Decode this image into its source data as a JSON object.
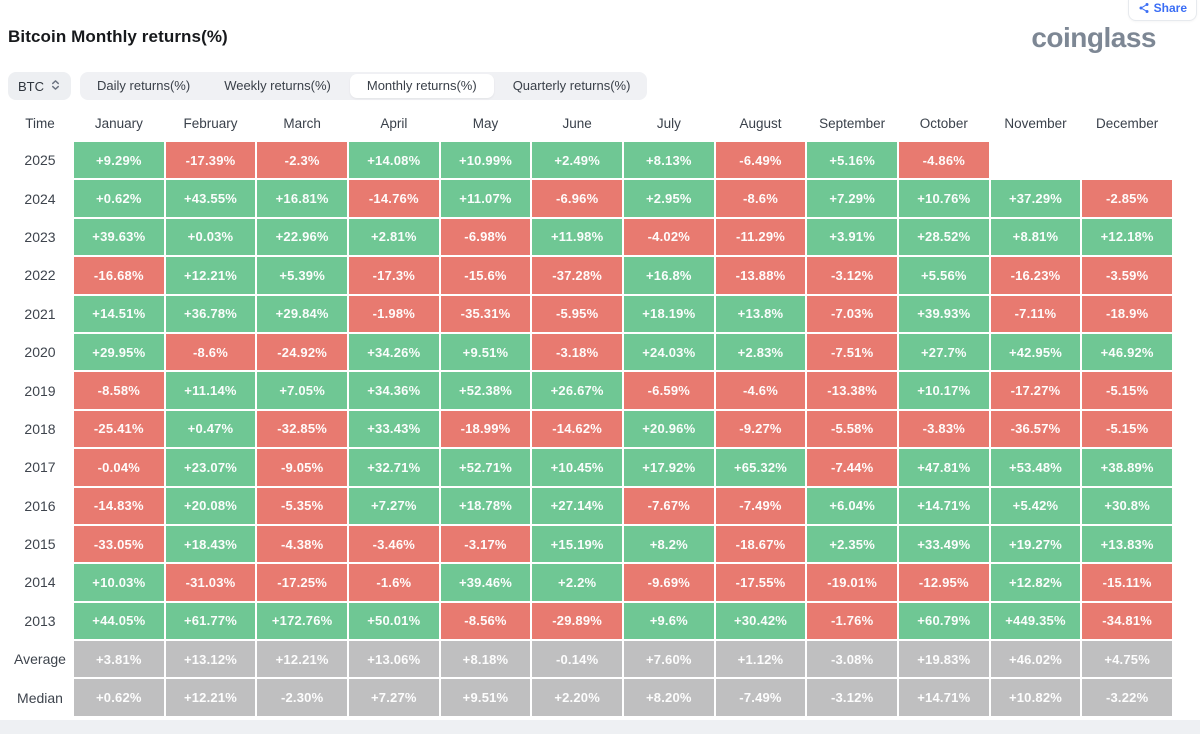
{
  "page": {
    "title": "Bitcoin Monthly returns(%)",
    "logo_text": "coinglass",
    "share_label": "Share"
  },
  "controls": {
    "coin_selector": {
      "label": "BTC",
      "icon": "sort-arrows-icon"
    },
    "tabs": [
      {
        "label": "Daily returns(%)",
        "active": false
      },
      {
        "label": "Weekly returns(%)",
        "active": false
      },
      {
        "label": "Monthly returns(%)",
        "active": true
      },
      {
        "label": "Quarterly returns(%)",
        "active": false
      }
    ]
  },
  "colors": {
    "positive": "#6fc794",
    "negative": "#e87a70",
    "summary": "#bfbfc0",
    "blue": "#3b6ef5",
    "logo": "#7d8794"
  },
  "chart_data": {
    "type": "heatmap",
    "title": "Bitcoin Monthly returns(%)",
    "time_header": "Time",
    "columns": [
      "January",
      "February",
      "March",
      "April",
      "May",
      "June",
      "July",
      "August",
      "September",
      "October",
      "November",
      "December"
    ],
    "color_rule": "positive values green, negative values red, summary rows gray, null cells blank",
    "rows": [
      {
        "label": "2025",
        "summary": false,
        "values": [
          "+9.29%",
          "-17.39%",
          "-2.3%",
          "+14.08%",
          "+10.99%",
          "+2.49%",
          "+8.13%",
          "-6.49%",
          "+5.16%",
          "-4.86%",
          null,
          null
        ]
      },
      {
        "label": "2024",
        "summary": false,
        "values": [
          "+0.62%",
          "+43.55%",
          "+16.81%",
          "-14.76%",
          "+11.07%",
          "-6.96%",
          "+2.95%",
          "-8.6%",
          "+7.29%",
          "+10.76%",
          "+37.29%",
          "-2.85%"
        ]
      },
      {
        "label": "2023",
        "summary": false,
        "values": [
          "+39.63%",
          "+0.03%",
          "+22.96%",
          "+2.81%",
          "-6.98%",
          "+11.98%",
          "-4.02%",
          "-11.29%",
          "+3.91%",
          "+28.52%",
          "+8.81%",
          "+12.18%"
        ]
      },
      {
        "label": "2022",
        "summary": false,
        "values": [
          "-16.68%",
          "+12.21%",
          "+5.39%",
          "-17.3%",
          "-15.6%",
          "-37.28%",
          "+16.8%",
          "-13.88%",
          "-3.12%",
          "+5.56%",
          "-16.23%",
          "-3.59%"
        ]
      },
      {
        "label": "2021",
        "summary": false,
        "values": [
          "+14.51%",
          "+36.78%",
          "+29.84%",
          "-1.98%",
          "-35.31%",
          "-5.95%",
          "+18.19%",
          "+13.8%",
          "-7.03%",
          "+39.93%",
          "-7.11%",
          "-18.9%"
        ]
      },
      {
        "label": "2020",
        "summary": false,
        "values": [
          "+29.95%",
          "-8.6%",
          "-24.92%",
          "+34.26%",
          "+9.51%",
          "-3.18%",
          "+24.03%",
          "+2.83%",
          "-7.51%",
          "+27.7%",
          "+42.95%",
          "+46.92%"
        ]
      },
      {
        "label": "2019",
        "summary": false,
        "values": [
          "-8.58%",
          "+11.14%",
          "+7.05%",
          "+34.36%",
          "+52.38%",
          "+26.67%",
          "-6.59%",
          "-4.6%",
          "-13.38%",
          "+10.17%",
          "-17.27%",
          "-5.15%"
        ]
      },
      {
        "label": "2018",
        "summary": false,
        "values": [
          "-25.41%",
          "+0.47%",
          "-32.85%",
          "+33.43%",
          "-18.99%",
          "-14.62%",
          "+20.96%",
          "-9.27%",
          "-5.58%",
          "-3.83%",
          "-36.57%",
          "-5.15%"
        ]
      },
      {
        "label": "2017",
        "summary": false,
        "values": [
          "-0.04%",
          "+23.07%",
          "-9.05%",
          "+32.71%",
          "+52.71%",
          "+10.45%",
          "+17.92%",
          "+65.32%",
          "-7.44%",
          "+47.81%",
          "+53.48%",
          "+38.89%"
        ]
      },
      {
        "label": "2016",
        "summary": false,
        "values": [
          "-14.83%",
          "+20.08%",
          "-5.35%",
          "+7.27%",
          "+18.78%",
          "+27.14%",
          "-7.67%",
          "-7.49%",
          "+6.04%",
          "+14.71%",
          "+5.42%",
          "+30.8%"
        ]
      },
      {
        "label": "2015",
        "summary": false,
        "values": [
          "-33.05%",
          "+18.43%",
          "-4.38%",
          "-3.46%",
          "-3.17%",
          "+15.19%",
          "+8.2%",
          "-18.67%",
          "+2.35%",
          "+33.49%",
          "+19.27%",
          "+13.83%"
        ]
      },
      {
        "label": "2014",
        "summary": false,
        "values": [
          "+10.03%",
          "-31.03%",
          "-17.25%",
          "-1.6%",
          "+39.46%",
          "+2.2%",
          "-9.69%",
          "-17.55%",
          "-19.01%",
          "-12.95%",
          "+12.82%",
          "-15.11%"
        ]
      },
      {
        "label": "2013",
        "summary": false,
        "values": [
          "+44.05%",
          "+61.77%",
          "+172.76%",
          "+50.01%",
          "-8.56%",
          "-29.89%",
          "+9.6%",
          "+30.42%",
          "-1.76%",
          "+60.79%",
          "+449.35%",
          "-34.81%"
        ]
      },
      {
        "label": "Average",
        "summary": true,
        "values": [
          "+3.81%",
          "+13.12%",
          "+12.21%",
          "+13.06%",
          "+8.18%",
          "-0.14%",
          "+7.60%",
          "+1.12%",
          "-3.08%",
          "+19.83%",
          "+46.02%",
          "+4.75%"
        ]
      },
      {
        "label": "Median",
        "summary": true,
        "values": [
          "+0.62%",
          "+12.21%",
          "-2.30%",
          "+7.27%",
          "+9.51%",
          "+2.20%",
          "+8.20%",
          "-7.49%",
          "-3.12%",
          "+14.71%",
          "+10.82%",
          "-3.22%"
        ]
      }
    ]
  }
}
